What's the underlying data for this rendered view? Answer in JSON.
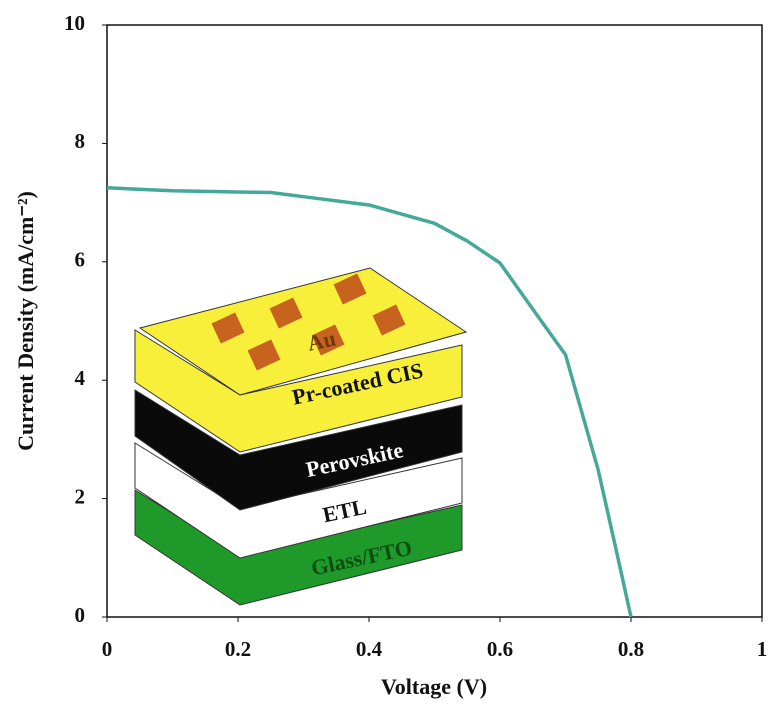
{
  "chart_data": {
    "type": "line",
    "x_label": "Voltage (V)",
    "y_label": "Current Density (mA/cm⁻²)",
    "x": [
      0,
      0.1,
      0.2,
      0.25,
      0.3,
      0.4,
      0.5,
      0.55,
      0.6,
      0.65,
      0.7,
      0.75,
      0.78,
      0.8
    ],
    "series": [
      {
        "color": "#45a898",
        "values": [
          7.25,
          7.2,
          7.18,
          7.17,
          7.1,
          6.96,
          6.65,
          6.35,
          5.98,
          5.2,
          4.43,
          2.48,
          1.0,
          0
        ]
      }
    ],
    "xlim": [
      0,
      1
    ],
    "ylim": [
      0,
      10
    ],
    "xticks": [
      0,
      0.2,
      0.4,
      0.6,
      0.8,
      1
    ],
    "yticks": [
      0,
      2,
      4,
      6,
      8,
      10
    ],
    "grid": false,
    "annotations": [
      "Au",
      "Pr-coated CIS",
      "Perovskite",
      "ETL",
      "Glass/FTO"
    ]
  }
}
